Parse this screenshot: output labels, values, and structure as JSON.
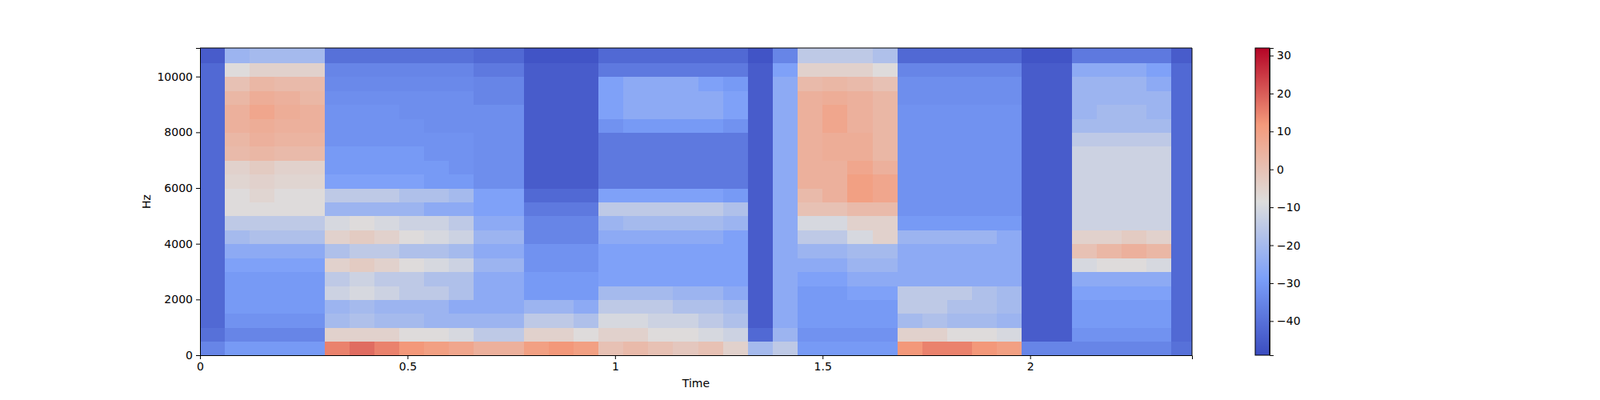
{
  "chart_data": {
    "type": "heatmap",
    "x_label": "Time",
    "y_label": "Hz",
    "xlim": [
      0,
      2.39
    ],
    "ylim": [
      0,
      11025
    ],
    "xticks": [
      0,
      0.5,
      1,
      1.5,
      2
    ],
    "yticks": [
      0,
      2000,
      4000,
      6000,
      8000,
      10000
    ],
    "colorbar_range": [
      -49,
      32
    ],
    "colorbar_ticks": [
      {
        "value": -40,
        "label": "−40"
      },
      {
        "value": -30,
        "label": "−30"
      },
      {
        "value": -20,
        "label": "−20"
      },
      {
        "value": -10,
        "label": "−10"
      },
      0,
      10,
      20,
      30
    ],
    "x": [
      0,
      0.06,
      0.12,
      0.18,
      0.24,
      0.3,
      0.36,
      0.42,
      0.48,
      0.54,
      0.6,
      0.66,
      0.72,
      0.78,
      0.84,
      0.9,
      0.96,
      1.02,
      1.08,
      1.14,
      1.2,
      1.26,
      1.32,
      1.38,
      1.44,
      1.5,
      1.56,
      1.62,
      1.68,
      1.74,
      1.8,
      1.86,
      1.92,
      1.98,
      2.04,
      2.1,
      2.16,
      2.22,
      2.28,
      2.34,
      2.39
    ],
    "y": [
      0,
      500,
      1000,
      1500,
      2000,
      2500,
      3000,
      3500,
      4000,
      4500,
      5000,
      5500,
      6000,
      6500,
      7000,
      7500,
      8000,
      8500,
      9000,
      9500,
      10000,
      10500,
      11025
    ],
    "values": [
      [
        -35,
        -30,
        -30,
        -30,
        -30,
        15,
        18,
        15,
        12,
        10,
        8,
        5,
        5,
        10,
        12,
        10,
        0,
        2,
        0,
        -2,
        0,
        -5,
        -20,
        -15,
        -30,
        -30,
        -30,
        -30,
        12,
        15,
        15,
        12,
        10,
        -35,
        -35,
        -35,
        -35,
        -35,
        -35,
        -40
      ],
      [
        -40,
        -35,
        -35,
        -35,
        -35,
        -5,
        -5,
        -5,
        -8,
        -8,
        -10,
        -15,
        -15,
        -5,
        -5,
        -8,
        -5,
        -5,
        -8,
        -8,
        -10,
        -12,
        -42,
        -22,
        -32,
        -32,
        -32,
        -32,
        -5,
        -5,
        -8,
        -8,
        -10,
        -45,
        -45,
        -32,
        -32,
        -32,
        -32,
        -42
      ],
      [
        -42,
        -32,
        -32,
        -32,
        -32,
        -20,
        -18,
        -20,
        -20,
        -22,
        -22,
        -22,
        -22,
        -15,
        -15,
        -18,
        -10,
        -10,
        -12,
        -12,
        -15,
        -18,
        -45,
        -25,
        -30,
        -30,
        -30,
        -30,
        -20,
        -18,
        -20,
        -20,
        -22,
        -45,
        -45,
        -30,
        -30,
        -30,
        -30,
        -42
      ],
      [
        -42,
        -30,
        -30,
        -30,
        -30,
        -22,
        -20,
        -22,
        -22,
        -22,
        -25,
        -25,
        -25,
        -22,
        -22,
        -25,
        -15,
        -15,
        -15,
        -18,
        -18,
        -20,
        -45,
        -25,
        -30,
        -30,
        -30,
        -30,
        -15,
        -15,
        -18,
        -18,
        -20,
        -45,
        -45,
        -30,
        -30,
        -30,
        -30,
        -42
      ],
      [
        -42,
        -30,
        -30,
        -30,
        -30,
        -12,
        -10,
        -12,
        -15,
        -15,
        -18,
        -25,
        -25,
        -30,
        -30,
        -30,
        -20,
        -20,
        -20,
        -22,
        -22,
        -25,
        -45,
        -25,
        -30,
        -30,
        -28,
        -28,
        -15,
        -15,
        -15,
        -18,
        -20,
        -45,
        -45,
        -28,
        -28,
        -28,
        -28,
        -42
      ],
      [
        -42,
        -30,
        -30,
        -30,
        -30,
        -15,
        -12,
        -15,
        -15,
        -18,
        -18,
        -25,
        -25,
        -30,
        -30,
        -30,
        -28,
        -28,
        -28,
        -28,
        -28,
        -28,
        -45,
        -25,
        -28,
        -28,
        -25,
        -25,
        -25,
        -25,
        -25,
        -25,
        -25,
        -45,
        -45,
        -25,
        -25,
        -25,
        -25,
        -42
      ],
      [
        -42,
        -28,
        -28,
        -28,
        -28,
        -5,
        -3,
        -5,
        -8,
        -10,
        -12,
        -22,
        -22,
        -32,
        -32,
        -32,
        -28,
        -28,
        -28,
        -28,
        -28,
        -28,
        -45,
        -25,
        -25,
        -25,
        -22,
        -22,
        -25,
        -25,
        -25,
        -25,
        -25,
        -45,
        -45,
        -10,
        -8,
        -8,
        -10,
        -42
      ],
      [
        -42,
        -25,
        -25,
        -25,
        -25,
        -18,
        -15,
        -15,
        -18,
        -18,
        -20,
        -25,
        -25,
        -32,
        -32,
        -32,
        -28,
        -28,
        -28,
        -28,
        -28,
        -28,
        -45,
        -25,
        -22,
        -22,
        -20,
        -20,
        -25,
        -25,
        -25,
        -25,
        -25,
        -45,
        -45,
        0,
        3,
        5,
        3,
        -42
      ],
      [
        -42,
        -20,
        -18,
        -18,
        -18,
        -5,
        -3,
        -5,
        -8,
        -10,
        -12,
        -22,
        -22,
        -35,
        -35,
        -35,
        -25,
        -25,
        -25,
        -25,
        -25,
        -28,
        -45,
        -25,
        -15,
        -15,
        -10,
        -5,
        -22,
        -22,
        -22,
        -22,
        -25,
        -45,
        -45,
        -5,
        -5,
        -3,
        -5,
        -42
      ],
      [
        -42,
        -15,
        -15,
        -15,
        -15,
        -10,
        -8,
        -10,
        -12,
        -12,
        -15,
        -25,
        -25,
        -35,
        -35,
        -35,
        -22,
        -20,
        -20,
        -20,
        -20,
        -22,
        -45,
        -25,
        -10,
        -10,
        -5,
        -5,
        -30,
        -30,
        -30,
        -30,
        -30,
        -45,
        -45,
        -12,
        -12,
        -12,
        -12,
        -42
      ],
      [
        -42,
        -8,
        -8,
        -8,
        -8,
        -22,
        -22,
        -22,
        -22,
        -25,
        -25,
        -28,
        -28,
        -38,
        -38,
        -38,
        -15,
        -15,
        -15,
        -15,
        -15,
        -18,
        -45,
        -25,
        0,
        0,
        2,
        2,
        -32,
        -32,
        -32,
        -32,
        -32,
        -45,
        -45,
        -12,
        -12,
        -12,
        -12,
        -42
      ],
      [
        -42,
        -8,
        -6,
        -8,
        -8,
        -15,
        -15,
        -15,
        -18,
        -18,
        -20,
        -28,
        -28,
        -42,
        -42,
        -42,
        -28,
        -28,
        -28,
        -28,
        -28,
        -30,
        -45,
        -25,
        2,
        5,
        10,
        8,
        -32,
        -32,
        -32,
        -32,
        -32,
        -45,
        -45,
        -12,
        -12,
        -12,
        -12,
        -42
      ],
      [
        -42,
        -6,
        -5,
        -6,
        -6,
        -28,
        -28,
        -28,
        -28,
        -30,
        -30,
        -33,
        -33,
        -45,
        -45,
        -45,
        -38,
        -38,
        -38,
        -38,
        -38,
        -38,
        -45,
        -25,
        5,
        5,
        10,
        8,
        -32,
        -32,
        -32,
        -32,
        -32,
        -45,
        -45,
        -12,
        -12,
        -12,
        -12,
        -42
      ],
      [
        -42,
        -5,
        -3,
        -5,
        -5,
        -30,
        -30,
        -30,
        -30,
        -30,
        -32,
        -33,
        -33,
        -45,
        -45,
        -45,
        -38,
        -38,
        -38,
        -38,
        -38,
        -38,
        -45,
        -25,
        5,
        5,
        8,
        5,
        -32,
        -32,
        -32,
        -32,
        -32,
        -45,
        -45,
        -12,
        -12,
        -12,
        -12,
        -42
      ],
      [
        -42,
        2,
        3,
        2,
        2,
        -30,
        -30,
        -30,
        -30,
        -32,
        -32,
        -33,
        -33,
        -45,
        -45,
        -45,
        -38,
        -38,
        -38,
        -38,
        -38,
        -38,
        -45,
        -25,
        5,
        6,
        6,
        3,
        -32,
        -32,
        -32,
        -32,
        -32,
        -45,
        -45,
        -12,
        -12,
        -12,
        -12,
        -42
      ],
      [
        -42,
        3,
        5,
        4,
        4,
        -32,
        -32,
        -32,
        -32,
        -32,
        -32,
        -33,
        -33,
        -45,
        -45,
        -45,
        -38,
        -38,
        -38,
        -38,
        -38,
        -38,
        -45,
        -25,
        5,
        6,
        6,
        3,
        -32,
        -32,
        -32,
        -32,
        -32,
        -45,
        -45,
        -15,
        -15,
        -15,
        -15,
        -42
      ],
      [
        -42,
        5,
        6,
        5,
        5,
        -32,
        -32,
        -32,
        -32,
        -33,
        -33,
        -33,
        -33,
        -45,
        -45,
        -45,
        -32,
        -30,
        -30,
        -30,
        -30,
        -32,
        -45,
        -25,
        5,
        8,
        5,
        3,
        -32,
        -32,
        -32,
        -32,
        -32,
        -45,
        -45,
        -20,
        -20,
        -20,
        -20,
        -42
      ],
      [
        -42,
        5,
        8,
        6,
        5,
        -32,
        -32,
        -32,
        -33,
        -33,
        -33,
        -33,
        -33,
        -45,
        -45,
        -45,
        -28,
        -25,
        -25,
        -25,
        -25,
        -28,
        -45,
        -25,
        5,
        8,
        5,
        3,
        -32,
        -32,
        -32,
        -32,
        -32,
        -45,
        -45,
        -22,
        -20,
        -20,
        -22,
        -42
      ],
      [
        -42,
        3,
        6,
        5,
        3,
        -33,
        -33,
        -33,
        -33,
        -33,
        -33,
        -35,
        -35,
        -45,
        -45,
        -45,
        -28,
        -25,
        -25,
        -25,
        -25,
        -28,
        -45,
        -25,
        5,
        6,
        5,
        3,
        -33,
        -33,
        -33,
        -33,
        -33,
        -45,
        -45,
        -22,
        -22,
        -22,
        -22,
        -42
      ],
      [
        -42,
        0,
        3,
        2,
        2,
        -34,
        -34,
        -34,
        -34,
        -34,
        -34,
        -35,
        -35,
        -45,
        -45,
        -45,
        -28,
        -25,
        -25,
        -25,
        -28,
        -30,
        -45,
        -25,
        2,
        3,
        2,
        0,
        -33,
        -33,
        -33,
        -33,
        -33,
        -45,
        -45,
        -22,
        -22,
        -22,
        -25,
        -42
      ],
      [
        -42,
        -8,
        -5,
        -5,
        -5,
        -35,
        -35,
        -35,
        -35,
        -35,
        -35,
        -38,
        -38,
        -45,
        -45,
        -45,
        -38,
        -38,
        -38,
        -38,
        -38,
        -38,
        -45,
        -28,
        -5,
        -5,
        -5,
        -8,
        -35,
        -35,
        -35,
        -35,
        -35,
        -45,
        -45,
        -25,
        -25,
        -25,
        -28,
        -42
      ],
      [
        -45,
        -22,
        -20,
        -20,
        -20,
        -40,
        -40,
        -40,
        -40,
        -40,
        -40,
        -42,
        -42,
        -47,
        -47,
        -47,
        -42,
        -42,
        -42,
        -42,
        -42,
        -42,
        -47,
        -35,
        -15,
        -15,
        -15,
        -18,
        -42,
        -42,
        -42,
        -42,
        -42,
        -47,
        -47,
        -38,
        -38,
        -38,
        -38,
        -45
      ]
    ]
  }
}
